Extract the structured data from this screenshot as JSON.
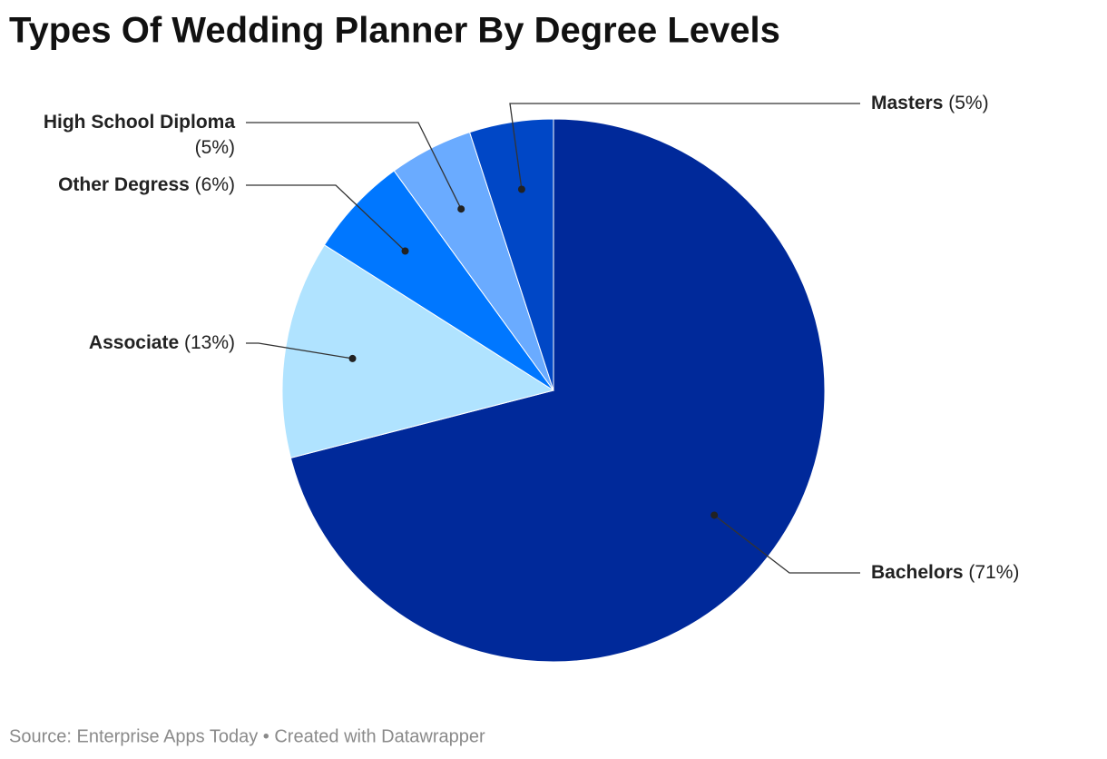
{
  "chart_data": {
    "type": "pie",
    "title": "Types Of Wedding Planner By Degree Levels",
    "categories": [
      "Bachelors",
      "Associate",
      "Other Degress",
      "High School Diploma",
      "Masters"
    ],
    "values": [
      71,
      13,
      6,
      5,
      5
    ],
    "value_labels": [
      "(71%)",
      "(13%)",
      "(6%)",
      "(5%)",
      "(5%)"
    ],
    "colors": [
      "#00299a",
      "#b0e3ff",
      "#0077ff",
      "#6aabff",
      "#0047c6"
    ],
    "source": "Source: Enterprise Apps Today • Created with Datawrapper"
  }
}
